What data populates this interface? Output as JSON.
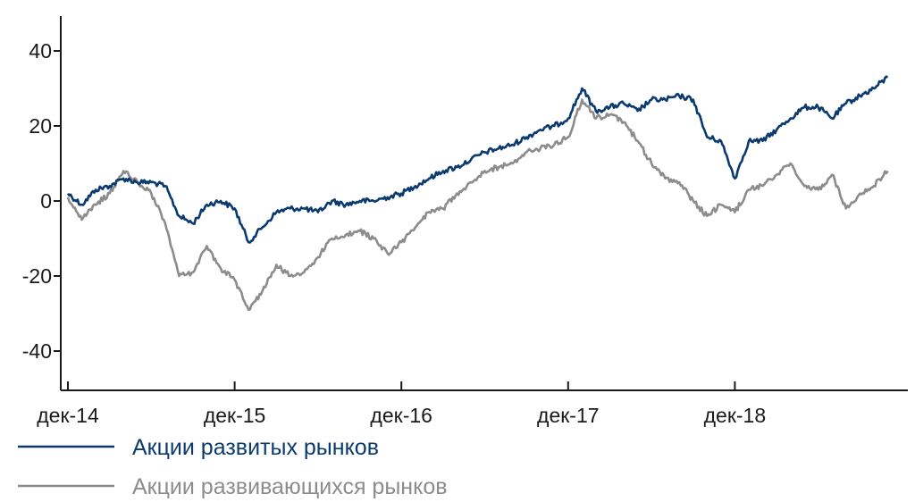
{
  "chart_data": {
    "type": "line",
    "title": "",
    "xlabel": "",
    "ylabel": "",
    "ylim": [
      -50,
      50
    ],
    "yticks": [
      40,
      20,
      0,
      -20,
      -40
    ],
    "ytick_labels": [
      "40",
      "20",
      "0",
      "-20",
      "-40"
    ],
    "x_range": [
      "2014-12",
      "2019-11"
    ],
    "xticks": [
      "2014-12",
      "2015-12",
      "2016-12",
      "2017-12",
      "2018-12"
    ],
    "xtick_labels": [
      "дек-14",
      "дек-15",
      "дек-16",
      "дек-17",
      "дек-18"
    ],
    "grid": false,
    "legend_position": "bottom-left",
    "series": [
      {
        "name": "Акции развитых рынков",
        "color": "#0b3a6e",
        "x": [
          "2014-12",
          "2015-01",
          "2015-02",
          "2015-03",
          "2015-04",
          "2015-05",
          "2015-06",
          "2015-07",
          "2015-08",
          "2015-09",
          "2015-10",
          "2015-11",
          "2015-12",
          "2016-01",
          "2016-02",
          "2016-03",
          "2016-04",
          "2016-05",
          "2016-06",
          "2016-07",
          "2016-08",
          "2016-09",
          "2016-10",
          "2016-11",
          "2016-12",
          "2017-01",
          "2017-02",
          "2017-03",
          "2017-04",
          "2017-05",
          "2017-06",
          "2017-07",
          "2017-08",
          "2017-09",
          "2017-10",
          "2017-11",
          "2017-12",
          "2018-01",
          "2018-02",
          "2018-03",
          "2018-04",
          "2018-05",
          "2018-06",
          "2018-07",
          "2018-08",
          "2018-09",
          "2018-10",
          "2018-11",
          "2018-12",
          "2019-01",
          "2019-02",
          "2019-03",
          "2019-04",
          "2019-05",
          "2019-06",
          "2019-07",
          "2019-08",
          "2019-09",
          "2019-10",
          "2019-11"
        ],
        "values": [
          2,
          -1,
          3,
          4,
          6,
          5,
          5,
          4,
          -4,
          -6,
          -1,
          0,
          -2,
          -11,
          -7,
          -3,
          -2,
          -2,
          -3,
          0,
          -1,
          0,
          0,
          1,
          2,
          4,
          6,
          8,
          9,
          11,
          13,
          14,
          15,
          17,
          19,
          20,
          22,
          30,
          24,
          25,
          26,
          24,
          27,
          27,
          28,
          27,
          17,
          16,
          6,
          16,
          16,
          19,
          22,
          25,
          25,
          22,
          26,
          28,
          30,
          33
        ]
      },
      {
        "name": "Акции развивающихся рынков",
        "color": "#8c8c8c",
        "x": [
          "2014-12",
          "2015-01",
          "2015-02",
          "2015-03",
          "2015-04",
          "2015-05",
          "2015-06",
          "2015-07",
          "2015-08",
          "2015-09",
          "2015-10",
          "2015-11",
          "2015-12",
          "2016-01",
          "2016-02",
          "2016-03",
          "2016-04",
          "2016-05",
          "2016-06",
          "2016-07",
          "2016-08",
          "2016-09",
          "2016-10",
          "2016-11",
          "2016-12",
          "2017-01",
          "2017-02",
          "2017-03",
          "2017-04",
          "2017-05",
          "2017-06",
          "2017-07",
          "2017-08",
          "2017-09",
          "2017-10",
          "2017-11",
          "2017-12",
          "2018-01",
          "2018-02",
          "2018-03",
          "2018-04",
          "2018-05",
          "2018-06",
          "2018-07",
          "2018-08",
          "2018-09",
          "2018-10",
          "2018-11",
          "2018-12",
          "2019-01",
          "2019-02",
          "2019-03",
          "2019-04",
          "2019-05",
          "2019-06",
          "2019-07",
          "2019-08",
          "2019-09",
          "2019-10",
          "2019-11"
        ],
        "values": [
          1,
          -5,
          -1,
          2,
          8,
          5,
          2,
          -6,
          -20,
          -19,
          -12,
          -18,
          -21,
          -29,
          -24,
          -17,
          -20,
          -19,
          -15,
          -10,
          -9,
          -8,
          -10,
          -14,
          -11,
          -7,
          -3,
          -2,
          2,
          5,
          8,
          9,
          10,
          13,
          14,
          15,
          17,
          27,
          22,
          23,
          21,
          16,
          10,
          6,
          5,
          0,
          -4,
          -1,
          -3,
          3,
          4,
          7,
          10,
          4,
          3,
          7,
          -2,
          2,
          4,
          8
        ]
      }
    ]
  }
}
